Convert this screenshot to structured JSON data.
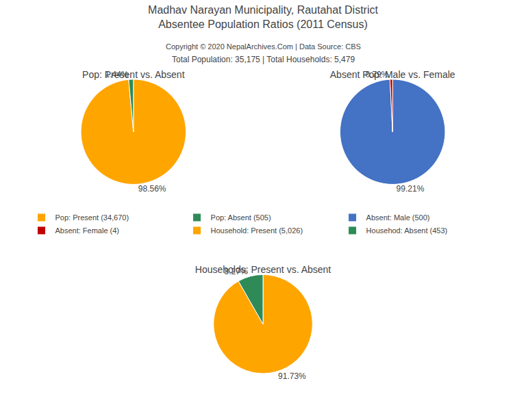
{
  "title": [
    "Madhav Narayan Municipality, Rautahat District",
    "Absentee Population Ratios (2011 Census)"
  ],
  "annotations": [
    "Copyright © 2020 NepalArchives.Com | Data Source: CBS",
    "Total Population: 35,175 | Total Households: 5,479"
  ],
  "legend": "center",
  "chart_data": [
    {
      "type": "pie",
      "title": "Pop: Present vs. Absent",
      "categories": [
        "Pop: Present (34,670)",
        "Pop: Absent (505)"
      ],
      "values": [
        98.56,
        1.44
      ],
      "value_labels": [
        "98.56%",
        "1.44%"
      ],
      "colors": [
        "#FFA500",
        "#2E8B57"
      ],
      "data_labels": true
    },
    {
      "type": "pie",
      "title": "Absent Pop: Male vs. Female",
      "categories": [
        "Absent: Male (500)",
        "Absent: Female (4)"
      ],
      "values": [
        99.21,
        0.79
      ],
      "value_labels": [
        "99.21%",
        "0.79%"
      ],
      "colors": [
        "#4472C4",
        "#C00000"
      ],
      "data_labels": true
    },
    {
      "type": "pie",
      "title": "Households: Present vs. Absent",
      "categories": [
        "Household: Present (5,026)",
        "Househod: Absent (453)"
      ],
      "values": [
        91.73,
        8.27
      ],
      "value_labels": [
        "91.73%",
        "8.27%"
      ],
      "colors": [
        "#FFA500",
        "#2E8B57"
      ],
      "data_labels": true
    }
  ]
}
